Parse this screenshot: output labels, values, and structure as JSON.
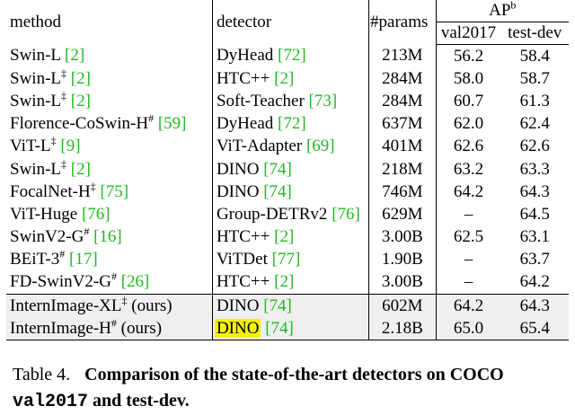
{
  "header": {
    "method": "method",
    "detector": "detector",
    "params": "#params",
    "ap": "AP",
    "ap_sup": "b",
    "val": "val2017",
    "test": "test-dev"
  },
  "rows": [
    {
      "method": "Swin-L",
      "msup": "",
      "mref": "2",
      "det": "DyHead",
      "dref": "72",
      "params": "213M",
      "val": "56.2",
      "test": "58.4"
    },
    {
      "method": "Swin-L",
      "msup": "‡",
      "mref": "2",
      "det": "HTC++",
      "dref": "2",
      "params": "284M",
      "val": "58.0",
      "test": "58.7"
    },
    {
      "method": "Swin-L",
      "msup": "‡",
      "mref": "2",
      "det": "Soft-Teacher",
      "dref": "73",
      "params": "284M",
      "val": "60.7",
      "test": "61.3"
    },
    {
      "method": "Florence-CoSwin-H",
      "msup": "#",
      "mref": "59",
      "det": "DyHead",
      "dref": "72",
      "params": "637M",
      "val": "62.0",
      "test": "62.4"
    },
    {
      "method": "ViT-L",
      "msup": "‡",
      "mref": "9",
      "det": "ViT-Adapter",
      "dref": "69",
      "params": "401M",
      "val": "62.6",
      "test": "62.6"
    },
    {
      "method": "Swin-L",
      "msup": "‡",
      "mref": "2",
      "det": "DINO",
      "dref": "74",
      "params": "218M",
      "val": "63.2",
      "test": "63.3"
    },
    {
      "method": "FocalNet-H",
      "msup": "‡",
      "mref": "75",
      "det": "DINO",
      "dref": "74",
      "params": "746M",
      "val": "64.2",
      "test": "64.3"
    },
    {
      "method": "ViT-Huge",
      "msup": "",
      "mref": "76",
      "det": "Group-DETRv2",
      "dref": "76",
      "params": "629M",
      "val": "–",
      "test": "64.5"
    },
    {
      "method": "SwinV2-G",
      "msup": "#",
      "mref": "16",
      "det": "HTC++",
      "dref": "2",
      "params": "3.00B",
      "val": "62.5",
      "test": "63.1"
    },
    {
      "method": "BEiT-3",
      "msup": "#",
      "mref": "17",
      "det": "ViTDet",
      "dref": "77",
      "params": "1.90B",
      "val": "–",
      "test": "63.7"
    },
    {
      "method": "FD-SwinV2-G",
      "msup": "#",
      "mref": "26",
      "det": "HTC++",
      "dref": "2",
      "params": "3.00B",
      "val": "–",
      "test": "64.2"
    }
  ],
  "ours": [
    {
      "method": "InternImage-XL",
      "msup": "‡",
      "suffix": "(ours)",
      "det": "DINO",
      "dref": "74",
      "params": "602M",
      "val": "64.2",
      "test": "64.3"
    },
    {
      "method": "InternImage-H",
      "msup": "#",
      "suffix": "(ours)",
      "det": "DINO",
      "dref": "74",
      "params": "2.18B",
      "val": "65.0",
      "test": "65.4"
    }
  ],
  "caption": {
    "label": "Table 4.",
    "text1": "Comparison of the state-of-the-art detectors on COCO",
    "mono": "val2017",
    "text2": "and test-dev."
  },
  "colors": {
    "ref": "#22b922",
    "highlight": "#f4f400",
    "ours_bg": "#efefef"
  }
}
